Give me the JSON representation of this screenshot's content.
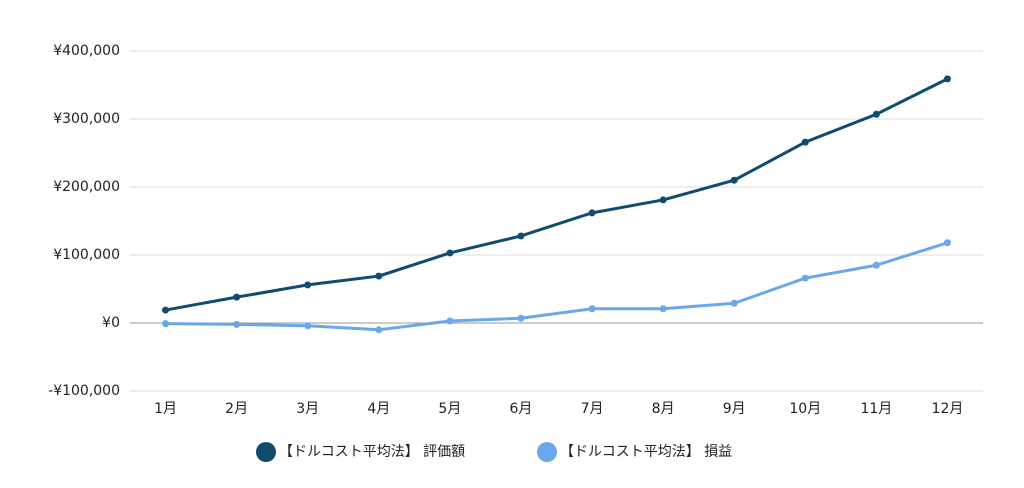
{
  "chart_data": {
    "type": "line",
    "categories": [
      "1月",
      "2月",
      "3月",
      "4月",
      "5月",
      "6月",
      "7月",
      "8月",
      "9月",
      "10月",
      "11月",
      "12月"
    ],
    "series": [
      {
        "name": "【ドルコスト平均法】 評価額",
        "color": "#0f4c6e",
        "values": [
          19000,
          38000,
          56000,
          69000,
          103000,
          128000,
          162000,
          181000,
          210000,
          266000,
          307000,
          359000
        ]
      },
      {
        "name": "【ドルコスト平均法】 損益",
        "color": "#6aa8ea",
        "values": [
          -1000,
          -2000,
          -4000,
          -10000,
          3000,
          7000,
          21000,
          21000,
          29000,
          66000,
          85000,
          118000
        ]
      }
    ],
    "ylim": [
      -100000,
      400000
    ],
    "yticks": [
      {
        "value": -100000,
        "label": "-¥100,000"
      },
      {
        "value": 0,
        "label": "¥0"
      },
      {
        "value": 100000,
        "label": "¥100,000"
      },
      {
        "value": 200000,
        "label": "¥200,000"
      },
      {
        "value": 300000,
        "label": "¥300,000"
      },
      {
        "value": 400000,
        "label": "¥400,000"
      }
    ],
    "grid": true,
    "legend": "bottom"
  }
}
